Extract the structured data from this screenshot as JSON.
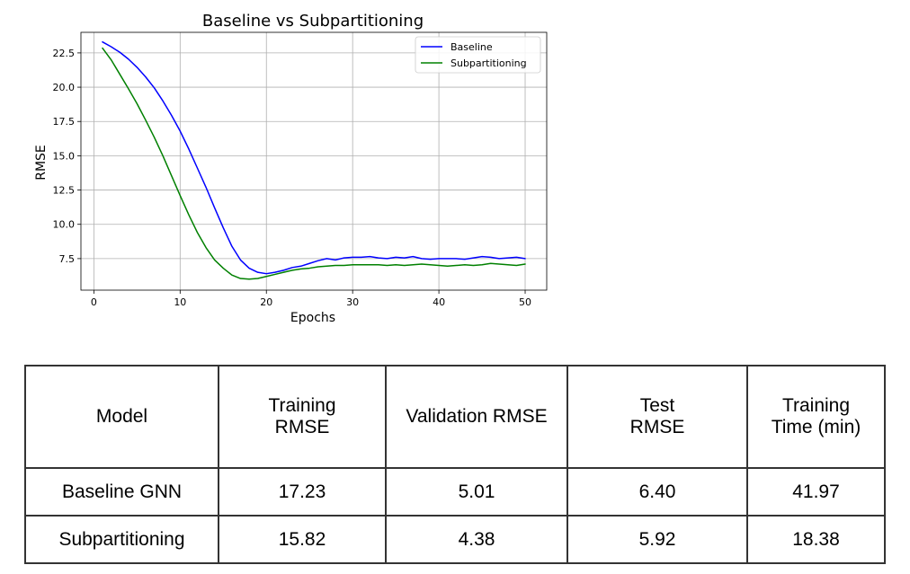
{
  "chart_data": {
    "type": "line",
    "title": "Baseline vs Subpartitioning",
    "xlabel": "Epochs",
    "ylabel": "RMSE",
    "xlim": [
      -1.5,
      52.5
    ],
    "ylim": [
      5.2,
      24.0
    ],
    "xticks": [
      0,
      10,
      20,
      30,
      40,
      50
    ],
    "xtick_labels": [
      "0",
      "10",
      "20",
      "30",
      "40",
      "50"
    ],
    "yticks": [
      7.5,
      10.0,
      12.5,
      15.0,
      17.5,
      20.0,
      22.5
    ],
    "ytick_labels": [
      "7.5",
      "10.0",
      "12.5",
      "15.0",
      "17.5",
      "20.0",
      "22.5"
    ],
    "grid": true,
    "legend_position": "top-right",
    "x": [
      1,
      2,
      3,
      4,
      5,
      6,
      7,
      8,
      9,
      10,
      11,
      12,
      13,
      14,
      15,
      16,
      17,
      18,
      19,
      20,
      21,
      22,
      23,
      24,
      25,
      26,
      27,
      28,
      29,
      30,
      31,
      32,
      33,
      34,
      35,
      36,
      37,
      38,
      39,
      40,
      41,
      42,
      43,
      44,
      45,
      46,
      47,
      48,
      49,
      50
    ],
    "series": [
      {
        "name": "Baseline",
        "color": "#0000ff",
        "values": [
          23.3,
          22.95,
          22.55,
          22.05,
          21.45,
          20.75,
          19.95,
          19.0,
          17.95,
          16.8,
          15.5,
          14.1,
          12.7,
          11.2,
          9.75,
          8.4,
          7.4,
          6.8,
          6.5,
          6.4,
          6.5,
          6.65,
          6.85,
          6.95,
          7.15,
          7.35,
          7.5,
          7.4,
          7.55,
          7.6,
          7.6,
          7.65,
          7.55,
          7.5,
          7.6,
          7.55,
          7.65,
          7.5,
          7.45,
          7.5,
          7.5,
          7.5,
          7.45,
          7.55,
          7.65,
          7.6,
          7.5,
          7.55,
          7.6,
          7.5
        ]
      },
      {
        "name": "Subpartitioning",
        "color": "#008000",
        "values": [
          22.85,
          22.0,
          20.95,
          19.9,
          18.8,
          17.6,
          16.35,
          15.0,
          13.55,
          12.1,
          10.7,
          9.4,
          8.3,
          7.4,
          6.8,
          6.3,
          6.05,
          6.0,
          6.05,
          6.2,
          6.35,
          6.5,
          6.65,
          6.75,
          6.8,
          6.9,
          6.95,
          7.0,
          7.0,
          7.05,
          7.05,
          7.05,
          7.05,
          7.0,
          7.05,
          7.0,
          7.05,
          7.1,
          7.05,
          7.0,
          6.95,
          7.0,
          7.05,
          7.0,
          7.05,
          7.15,
          7.1,
          7.05,
          7.0,
          7.1
        ]
      }
    ]
  },
  "table": {
    "headers": [
      [
        "Model"
      ],
      [
        "Training",
        "RMSE"
      ],
      [
        "Validation RMSE"
      ],
      [
        "Test",
        "RMSE"
      ],
      [
        "Training",
        "Time (min)"
      ]
    ],
    "rows": [
      [
        "Baseline GNN",
        "17.23",
        "5.01",
        "6.40",
        "41.97"
      ],
      [
        "Subpartitioning",
        "15.82",
        "4.38",
        "5.92",
        "18.38"
      ]
    ]
  }
}
